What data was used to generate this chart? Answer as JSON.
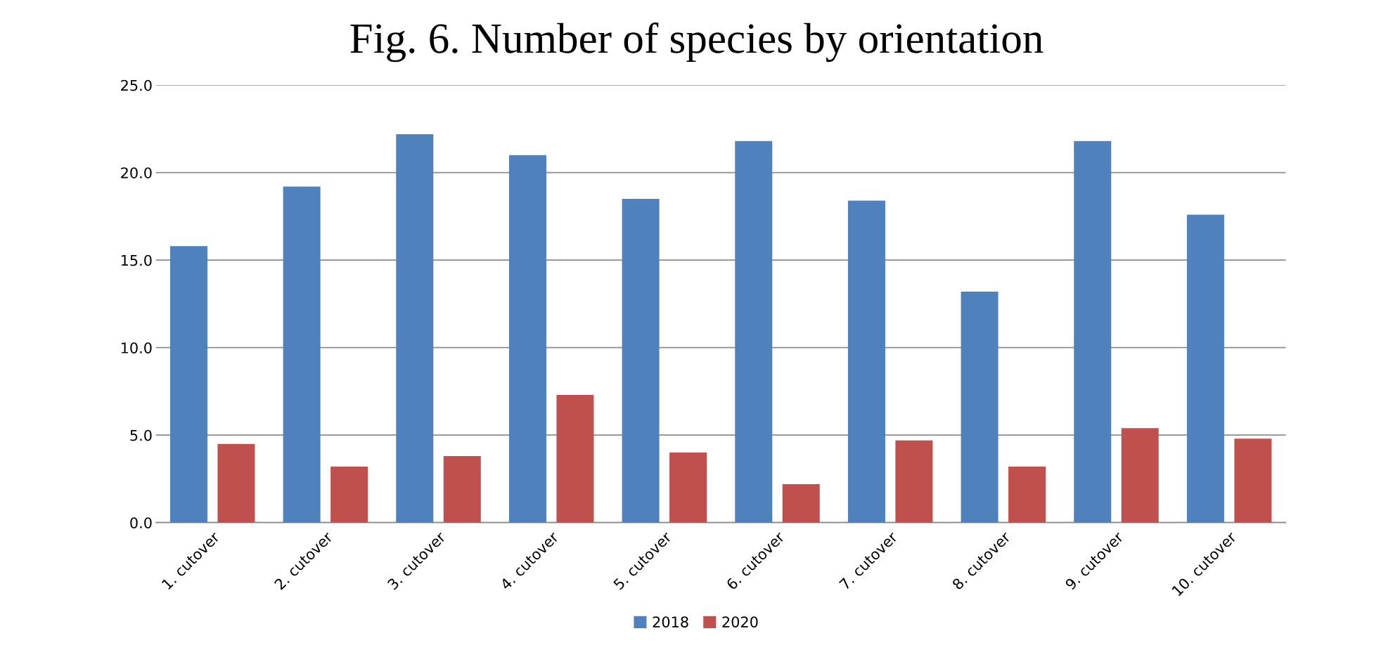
{
  "chart_data": {
    "type": "bar",
    "title": "Fig. 6. Number of species by orientation",
    "categories": [
      "1. cutover",
      "2. cutover",
      "3. cutover",
      "4. cutover",
      "5. cutover",
      "6. cutover",
      "7. cutover",
      "8. cutover",
      "9. cutover",
      "10. cutover"
    ],
    "series": [
      {
        "name": "2018",
        "color": "#4f81bd",
        "values": [
          15.8,
          19.2,
          22.2,
          21.0,
          18.5,
          21.8,
          18.4,
          13.2,
          21.8,
          17.6
        ]
      },
      {
        "name": "2020",
        "color": "#c0504d",
        "values": [
          4.5,
          3.2,
          3.8,
          7.3,
          4.0,
          2.2,
          4.7,
          3.2,
          5.4,
          4.8
        ]
      }
    ],
    "ylim": [
      0,
      25
    ],
    "yticks": [
      {
        "value": 0,
        "label": "0.0"
      },
      {
        "value": 5,
        "label": "5.0"
      },
      {
        "value": 10,
        "label": "10.0"
      },
      {
        "value": 15,
        "label": "15.0"
      },
      {
        "value": 20,
        "label": "20.0"
      },
      {
        "value": 25,
        "label": "25.0"
      }
    ],
    "grid": "y",
    "legend": "bottom"
  }
}
